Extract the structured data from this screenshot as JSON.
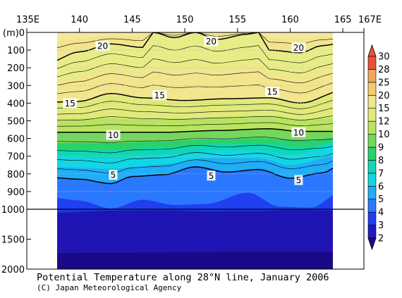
{
  "chart_data": {
    "type": "contour-section",
    "title": "Potential Temperature along 28°N line, January 2006",
    "credit": "(C) Japan Meteorological Agency",
    "x_ticks": [
      "135E",
      "140",
      "145",
      "150",
      "155",
      "160",
      "165",
      "167E"
    ],
    "x_tick_values": [
      135,
      140,
      145,
      150,
      155,
      160,
      165,
      167
    ],
    "xlim": [
      135,
      167
    ],
    "data_x_range": [
      137,
      165
    ],
    "y_unit_label": "(m)",
    "y_ticks_upper": [
      "0",
      "100",
      "200",
      "300",
      "400",
      "500",
      "600",
      "700",
      "800",
      "900",
      "1000"
    ],
    "y_tick_values_upper": [
      0,
      100,
      200,
      300,
      400,
      500,
      600,
      700,
      800,
      900,
      1000
    ],
    "y_ticks_lower": [
      "1500",
      "2000"
    ],
    "y_tick_values_lower": [
      1500,
      2000
    ],
    "ylim": [
      0,
      2000
    ],
    "colorbar": {
      "levels": [
        "2",
        "3",
        "4",
        "5",
        "6",
        "7",
        "8",
        "9",
        "10",
        "12",
        "15",
        "20",
        "25",
        "28",
        "30"
      ],
      "colors": [
        "#1c0a8c",
        "#2317c2",
        "#1f3ff0",
        "#2a78ff",
        "#1faef7",
        "#11d6e3",
        "#0fd7b4",
        "#27d36a",
        "#73d85a",
        "#b8e45f",
        "#e0ea7a",
        "#f2e58d",
        "#f5cc6a",
        "#f4a55a",
        "#e8523b"
      ]
    },
    "contour_labels": [
      {
        "text": "20",
        "x": 142.2,
        "depth": 75
      },
      {
        "text": "20",
        "x": 152.5,
        "depth": 50
      },
      {
        "text": "20",
        "x": 160.8,
        "depth": 85
      },
      {
        "text": "15",
        "x": 139.1,
        "depth": 400
      },
      {
        "text": "15",
        "x": 147.6,
        "depth": 355
      },
      {
        "text": "15",
        "x": 158.3,
        "depth": 335
      },
      {
        "text": "10",
        "x": 143.2,
        "depth": 580
      },
      {
        "text": "10",
        "x": 160.8,
        "depth": 565
      },
      {
        "text": "5",
        "x": 143.2,
        "depth": 805
      },
      {
        "text": "5",
        "x": 152.5,
        "depth": 810
      },
      {
        "text": "5",
        "x": 160.8,
        "depth": 835
      }
    ]
  }
}
